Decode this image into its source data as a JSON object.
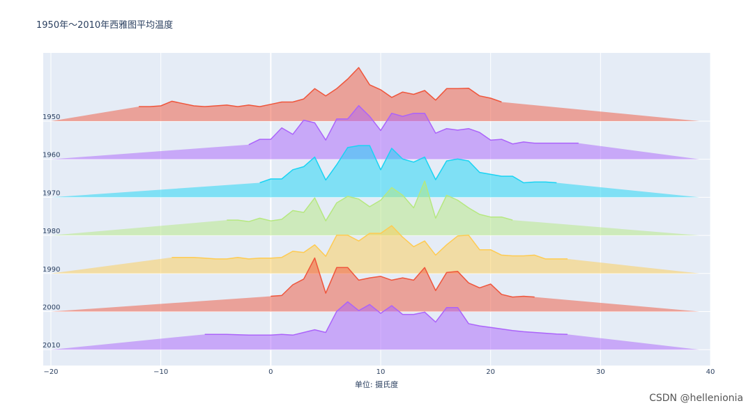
{
  "chart_data": {
    "type": "area",
    "title": "1950年～2010年西雅图平均温度",
    "xlabel": "单位: 摄氏度",
    "ylabel": "",
    "xlim": [
      -20,
      40
    ],
    "xticks": [
      -20,
      -10,
      0,
      10,
      20,
      30,
      40
    ],
    "xtick_labels": [
      "−20",
      "−10",
      "0",
      "10",
      "20",
      "30",
      "40"
    ],
    "grid": true,
    "series": [
      {
        "name": "1950",
        "color": "#EF553B",
        "x": [
          -20,
          -12,
          -11,
          -10,
          -9,
          -8,
          -7,
          -6,
          -5,
          -4,
          -3,
          -2,
          -1,
          0,
          1,
          2,
          3,
          4,
          5,
          6,
          7,
          8,
          9,
          10,
          11,
          12,
          13,
          14,
          15,
          16,
          17,
          18,
          19,
          20,
          21,
          39
        ],
        "y": [
          0,
          0.38,
          0.38,
          0.4,
          0.52,
          0.46,
          0.4,
          0.38,
          0.4,
          0.42,
          0.38,
          0.42,
          0.38,
          0.44,
          0.5,
          0.5,
          0.58,
          0.85,
          0.66,
          0.85,
          1.1,
          1.4,
          0.95,
          0.82,
          0.62,
          0.76,
          0.7,
          0.8,
          0.55,
          0.85,
          0.85,
          0.86,
          0.66,
          0.6,
          0.5,
          0
        ]
      },
      {
        "name": "1960",
        "color": "#AB63FA",
        "x": [
          -20,
          -2,
          -1,
          0,
          1,
          2,
          3,
          4,
          5,
          6,
          7,
          8,
          9,
          10,
          11,
          12,
          13,
          14,
          15,
          16,
          17,
          18,
          19,
          20,
          21,
          22,
          23,
          24,
          25,
          26,
          27,
          28,
          39
        ],
        "y": [
          0,
          0.38,
          0.52,
          0.52,
          0.82,
          0.65,
          1.02,
          0.95,
          0.5,
          1.05,
          1.05,
          1.4,
          1.12,
          0.75,
          1.2,
          1.12,
          1.2,
          1.2,
          0.68,
          0.8,
          0.76,
          0.8,
          0.7,
          0.5,
          0.52,
          0.4,
          0.45,
          0.42,
          0.42,
          0.42,
          0.42,
          0.42,
          0
        ]
      },
      {
        "name": "1970",
        "color": "#19D3F3",
        "x": [
          -20,
          -1,
          0,
          1,
          2,
          3,
          4,
          5,
          6,
          7,
          8,
          9,
          10,
          11,
          12,
          13,
          14,
          15,
          16,
          17,
          18,
          19,
          20,
          21,
          22,
          23,
          24,
          25,
          26,
          39
        ],
        "y": [
          0,
          0.38,
          0.48,
          0.48,
          0.72,
          0.8,
          1.05,
          0.45,
          0.85,
          1.3,
          1.35,
          1.35,
          0.72,
          1.28,
          1.0,
          0.92,
          1.05,
          0.46,
          0.95,
          1.0,
          0.95,
          0.65,
          0.6,
          0.55,
          0.55,
          0.38,
          0.4,
          0.4,
          0.38,
          0
        ]
      },
      {
        "name": "1980",
        "color": "#B6E880",
        "x": [
          -20,
          -4,
          -3,
          -2,
          -1,
          0,
          1,
          2,
          3,
          4,
          5,
          6,
          7,
          8,
          9,
          10,
          11,
          12,
          13,
          14,
          15,
          16,
          17,
          18,
          19,
          20,
          21,
          22,
          39
        ],
        "y": [
          0,
          0.4,
          0.4,
          0.36,
          0.45,
          0.38,
          0.42,
          0.65,
          0.6,
          0.98,
          0.38,
          0.85,
          1.02,
          0.95,
          0.75,
          0.92,
          1.25,
          1.05,
          0.72,
          1.42,
          0.45,
          1.05,
          0.92,
          0.72,
          0.55,
          0.48,
          0.48,
          0.4,
          0
        ]
      },
      {
        "name": "1990",
        "color": "#FECB52",
        "x": [
          -20,
          -9,
          -8,
          -7,
          -6,
          -5,
          -4,
          -3,
          -2,
          -1,
          0,
          1,
          2,
          3,
          4,
          5,
          6,
          7,
          8,
          9,
          10,
          11,
          12,
          13,
          14,
          15,
          16,
          17,
          18,
          19,
          20,
          21,
          22,
          23,
          24,
          25,
          26,
          27,
          39
        ],
        "y": [
          0,
          0.42,
          0.42,
          0.42,
          0.4,
          0.38,
          0.38,
          0.42,
          0.38,
          0.4,
          0.4,
          0.42,
          0.58,
          0.55,
          0.75,
          0.45,
          1.0,
          1.0,
          0.85,
          1.05,
          1.05,
          1.25,
          0.95,
          0.7,
          0.85,
          0.48,
          0.75,
          0.98,
          1.0,
          0.62,
          0.62,
          0.48,
          0.46,
          0.46,
          0.48,
          0.38,
          0.38,
          0.38,
          0
        ]
      },
      {
        "name": "2000",
        "color": "#EF553B",
        "x": [
          -20,
          0,
          1,
          2,
          3,
          4,
          5,
          6,
          7,
          8,
          9,
          10,
          11,
          12,
          13,
          14,
          15,
          16,
          17,
          18,
          19,
          20,
          21,
          22,
          23,
          24,
          39
        ],
        "y": [
          0,
          0.4,
          0.42,
          0.7,
          0.85,
          1.4,
          0.48,
          1.15,
          1.15,
          0.82,
          0.88,
          0.92,
          0.82,
          0.88,
          0.82,
          1.15,
          0.55,
          1.02,
          1.05,
          0.75,
          0.62,
          0.72,
          0.45,
          0.38,
          0.4,
          0.38,
          0
        ]
      },
      {
        "name": "2010",
        "color": "#AB63FA",
        "x": [
          -20,
          -6,
          -5,
          -4,
          -3,
          -2,
          -1,
          0,
          1,
          2,
          3,
          4,
          5,
          6,
          7,
          8,
          9,
          10,
          11,
          12,
          13,
          14,
          15,
          16,
          17,
          18,
          19,
          20,
          21,
          22,
          23,
          24,
          25,
          26,
          27,
          39
        ],
        "y": [
          0,
          0.4,
          0.4,
          0.4,
          0.39,
          0.38,
          0.38,
          0.38,
          0.4,
          0.38,
          0.45,
          0.52,
          0.45,
          1.0,
          1.25,
          1.02,
          1.18,
          0.95,
          1.15,
          0.92,
          0.92,
          0.98,
          0.72,
          1.1,
          1.1,
          0.68,
          0.62,
          0.58,
          0.54,
          0.5,
          0.47,
          0.45,
          0.43,
          0.41,
          0.4,
          0
        ]
      }
    ]
  },
  "watermark": "CSDN @hellenionia"
}
